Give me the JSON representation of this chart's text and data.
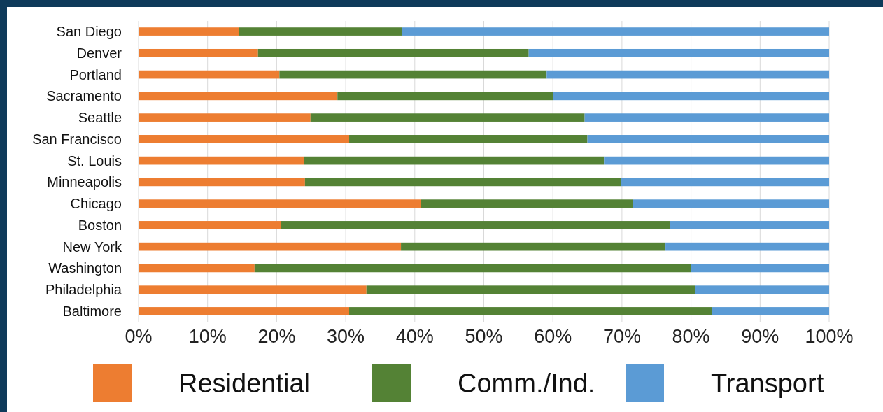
{
  "chart_data": {
    "type": "bar",
    "orientation": "horizontal",
    "stacked": true,
    "categories": [
      "San Diego",
      "Denver",
      "Portland",
      "Sacramento",
      "Seattle",
      "San Francisco",
      "St. Louis",
      "Minneapolis",
      "Chicago",
      "Boston",
      "New York",
      "Washington",
      "Philadelphia",
      "Baltimore"
    ],
    "series": [
      {
        "name": "Residential",
        "color": "#ed7d31",
        "values": [
          14.5,
          17.3,
          20.4,
          28.8,
          24.9,
          30.5,
          24.0,
          24.1,
          40.9,
          20.6,
          38.0,
          16.8,
          33.0,
          30.5
        ]
      },
      {
        "name": "Comm./Ind.",
        "color": "#548235",
        "values": [
          23.6,
          39.2,
          38.7,
          31.2,
          39.7,
          34.5,
          43.4,
          45.8,
          30.7,
          56.3,
          38.3,
          63.2,
          47.6,
          52.5
        ]
      },
      {
        "name": "Transport",
        "color": "#5b9bd5",
        "values": [
          61.9,
          43.5,
          40.9,
          40.0,
          35.4,
          35.0,
          32.6,
          30.1,
          28.4,
          23.1,
          23.7,
          20.0,
          19.4,
          17.0
        ]
      }
    ],
    "xlim": [
      0,
      100
    ],
    "xticks": [
      {
        "value": 0,
        "label": "0%"
      },
      {
        "value": 10,
        "label": "10%"
      },
      {
        "value": 20,
        "label": "20%"
      },
      {
        "value": 30,
        "label": "30%"
      },
      {
        "value": 40,
        "label": "40%"
      },
      {
        "value": 50,
        "label": "50%"
      },
      {
        "value": 60,
        "label": "60%"
      },
      {
        "value": 70,
        "label": "70%"
      },
      {
        "value": 80,
        "label": "80%"
      },
      {
        "value": 90,
        "label": "90%"
      },
      {
        "value": 100,
        "label": "100%"
      }
    ],
    "grid": "x",
    "legend": "bottom"
  }
}
